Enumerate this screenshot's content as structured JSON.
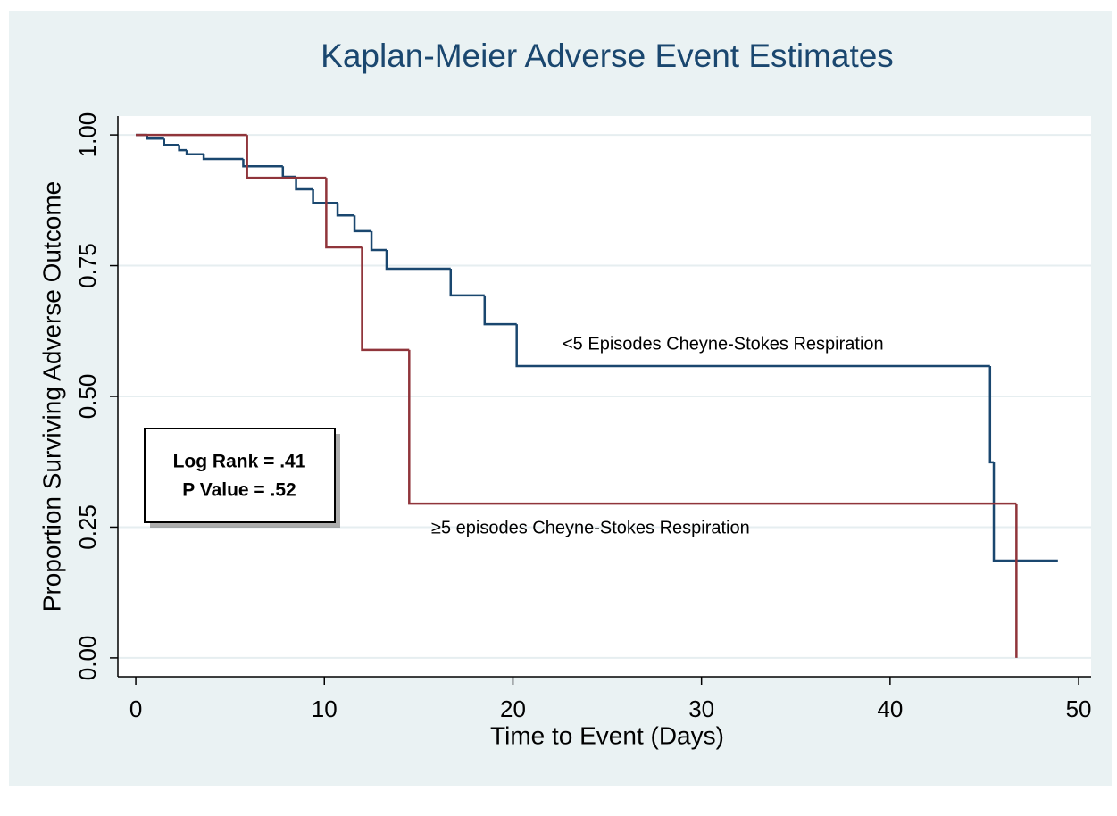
{
  "chart_data": {
    "type": "step",
    "title": "Kaplan-Meier Adverse Event Estimates",
    "x_label": "Time to Event (Days)",
    "y_label": "Proportion Surviving Adverse Outcome",
    "annotations": [
      "Log Rank = .41",
      "P Value = .52"
    ],
    "series": [
      {
        "name": "<5 Episodes Cheyne-Stokes Respiration",
        "color": "#1a476f",
        "x": [
          0,
          0.6,
          1.5,
          2.3,
          2.7,
          3.6,
          5.7,
          7.8,
          8.5,
          9.4,
          10.7,
          11.6,
          12.5,
          13.3,
          16.7,
          18.5,
          20.2,
          45.3,
          45.5,
          48.9
        ],
        "values": [
          1.0,
          0.993,
          0.981,
          0.971,
          0.963,
          0.954,
          0.94,
          0.92,
          0.896,
          0.87,
          0.846,
          0.816,
          0.78,
          0.744,
          0.693,
          0.638,
          0.558,
          0.374,
          0.186,
          0.186
        ]
      },
      {
        "name": "≥5 episodes Cheyne-Stokes Respiration",
        "color": "#90353b",
        "x": [
          0,
          5.9,
          10.1,
          12.0,
          14.5,
          46.7
        ],
        "values": [
          1.0,
          0.918,
          0.785,
          0.589,
          0.295,
          0
        ]
      }
    ],
    "xlim": [
      -0.95,
      50.66
    ],
    "ylim": [
      -0.036,
      1.036
    ],
    "xticks": [
      0,
      10,
      20,
      30,
      40,
      50
    ],
    "yticks": [
      {
        "value": 0,
        "label": "0.00"
      },
      0.25,
      {
        "value": 0.5,
        "label": "0.50"
      },
      0.75,
      {
        "value": 1,
        "label": "1.00"
      }
    ],
    "grid": true
  }
}
